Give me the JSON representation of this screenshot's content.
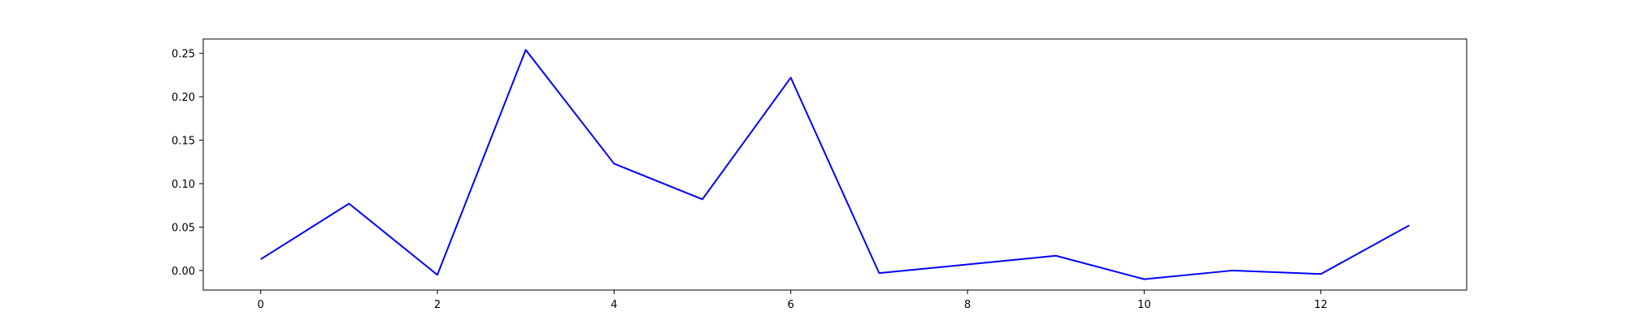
{
  "chart_data": {
    "type": "line",
    "title": "",
    "xlabel": "",
    "ylabel": "",
    "xlim": [
      -0.65,
      13.65
    ],
    "ylim": [
      -0.0225,
      0.2665
    ],
    "x_ticks": [
      0,
      2,
      4,
      6,
      8,
      10,
      12
    ],
    "y_ticks": [
      0.0,
      0.05,
      0.1,
      0.15,
      0.2,
      0.25
    ],
    "grid": false,
    "legend": "none",
    "series": [
      {
        "color": "#0000ff",
        "x": [
          0,
          1,
          2,
          3,
          4,
          5,
          6,
          7,
          8,
          9,
          10,
          11,
          12,
          13
        ],
        "y": [
          0.013,
          0.077,
          -0.005,
          0.254,
          0.123,
          0.082,
          0.222,
          -0.003,
          0.007,
          0.017,
          -0.01,
          0.0,
          -0.004,
          0.052
        ]
      }
    ]
  }
}
